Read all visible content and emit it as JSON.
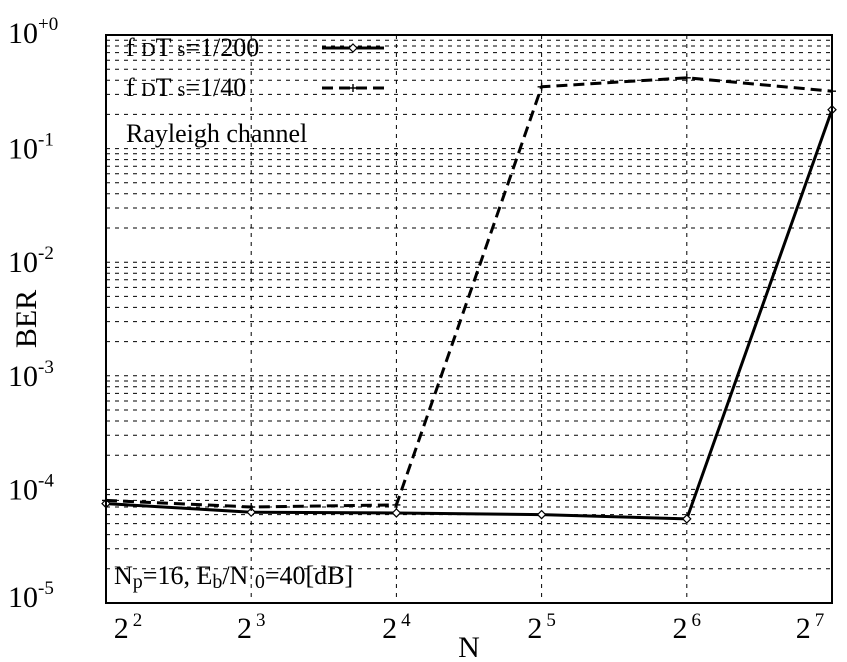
{
  "chart_data": {
    "type": "line",
    "x_scale": "log2",
    "y_scale": "log10",
    "categories": [
      {
        "base": "2",
        "exp": "2"
      },
      {
        "base": "2",
        "exp": "3"
      },
      {
        "base": "2",
        "exp": "4"
      },
      {
        "base": "2",
        "exp": "5"
      },
      {
        "base": "2",
        "exp": "6"
      },
      {
        "base": "2",
        "exp": "7"
      }
    ],
    "x": [
      4,
      8,
      16,
      32,
      64,
      128
    ],
    "y_ticks": [
      {
        "base": "10",
        "exp": "+0"
      },
      {
        "base": "10",
        "exp": "-1"
      },
      {
        "base": "10",
        "exp": "-2"
      },
      {
        "base": "10",
        "exp": "-3"
      },
      {
        "base": "10",
        "exp": "-4"
      },
      {
        "base": "10",
        "exp": "-5"
      }
    ],
    "ylim": [
      1e-05,
      1
    ],
    "xlabel": "N",
    "ylabel": "BER",
    "grid": true,
    "legend_position": "top-left",
    "series": [
      {
        "name": "f DT s=1/200",
        "legend": {
          "f": "f ",
          "sub": "D",
          "T": "T ",
          "sub2": "s",
          "rest": "=1/200"
        },
        "line_style": "solid",
        "marker": "diamond",
        "color": "#000000",
        "values": [
          7.5e-05,
          6.3e-05,
          6.2e-05,
          6e-05,
          5.5e-05,
          0.22
        ]
      },
      {
        "name": "f DT s=1/40",
        "legend": {
          "f": "f ",
          "sub": "D",
          "T": "T ",
          "sub2": "s",
          "rest": "=1/40"
        },
        "line_style": "dashed",
        "marker": "plus",
        "color": "#000000",
        "values": [
          8e-05,
          7e-05,
          7.3e-05,
          0.35,
          0.42,
          0.32
        ]
      }
    ],
    "annotations": {
      "channel": "Rayleigh channel",
      "params": {
        "N": "N",
        "p_sub": "p",
        "p_rest": "=16, E",
        "b_sub": "b",
        "slash": "/N ",
        "zero_sub": "0",
        "tail": "=40[dB]"
      }
    }
  }
}
